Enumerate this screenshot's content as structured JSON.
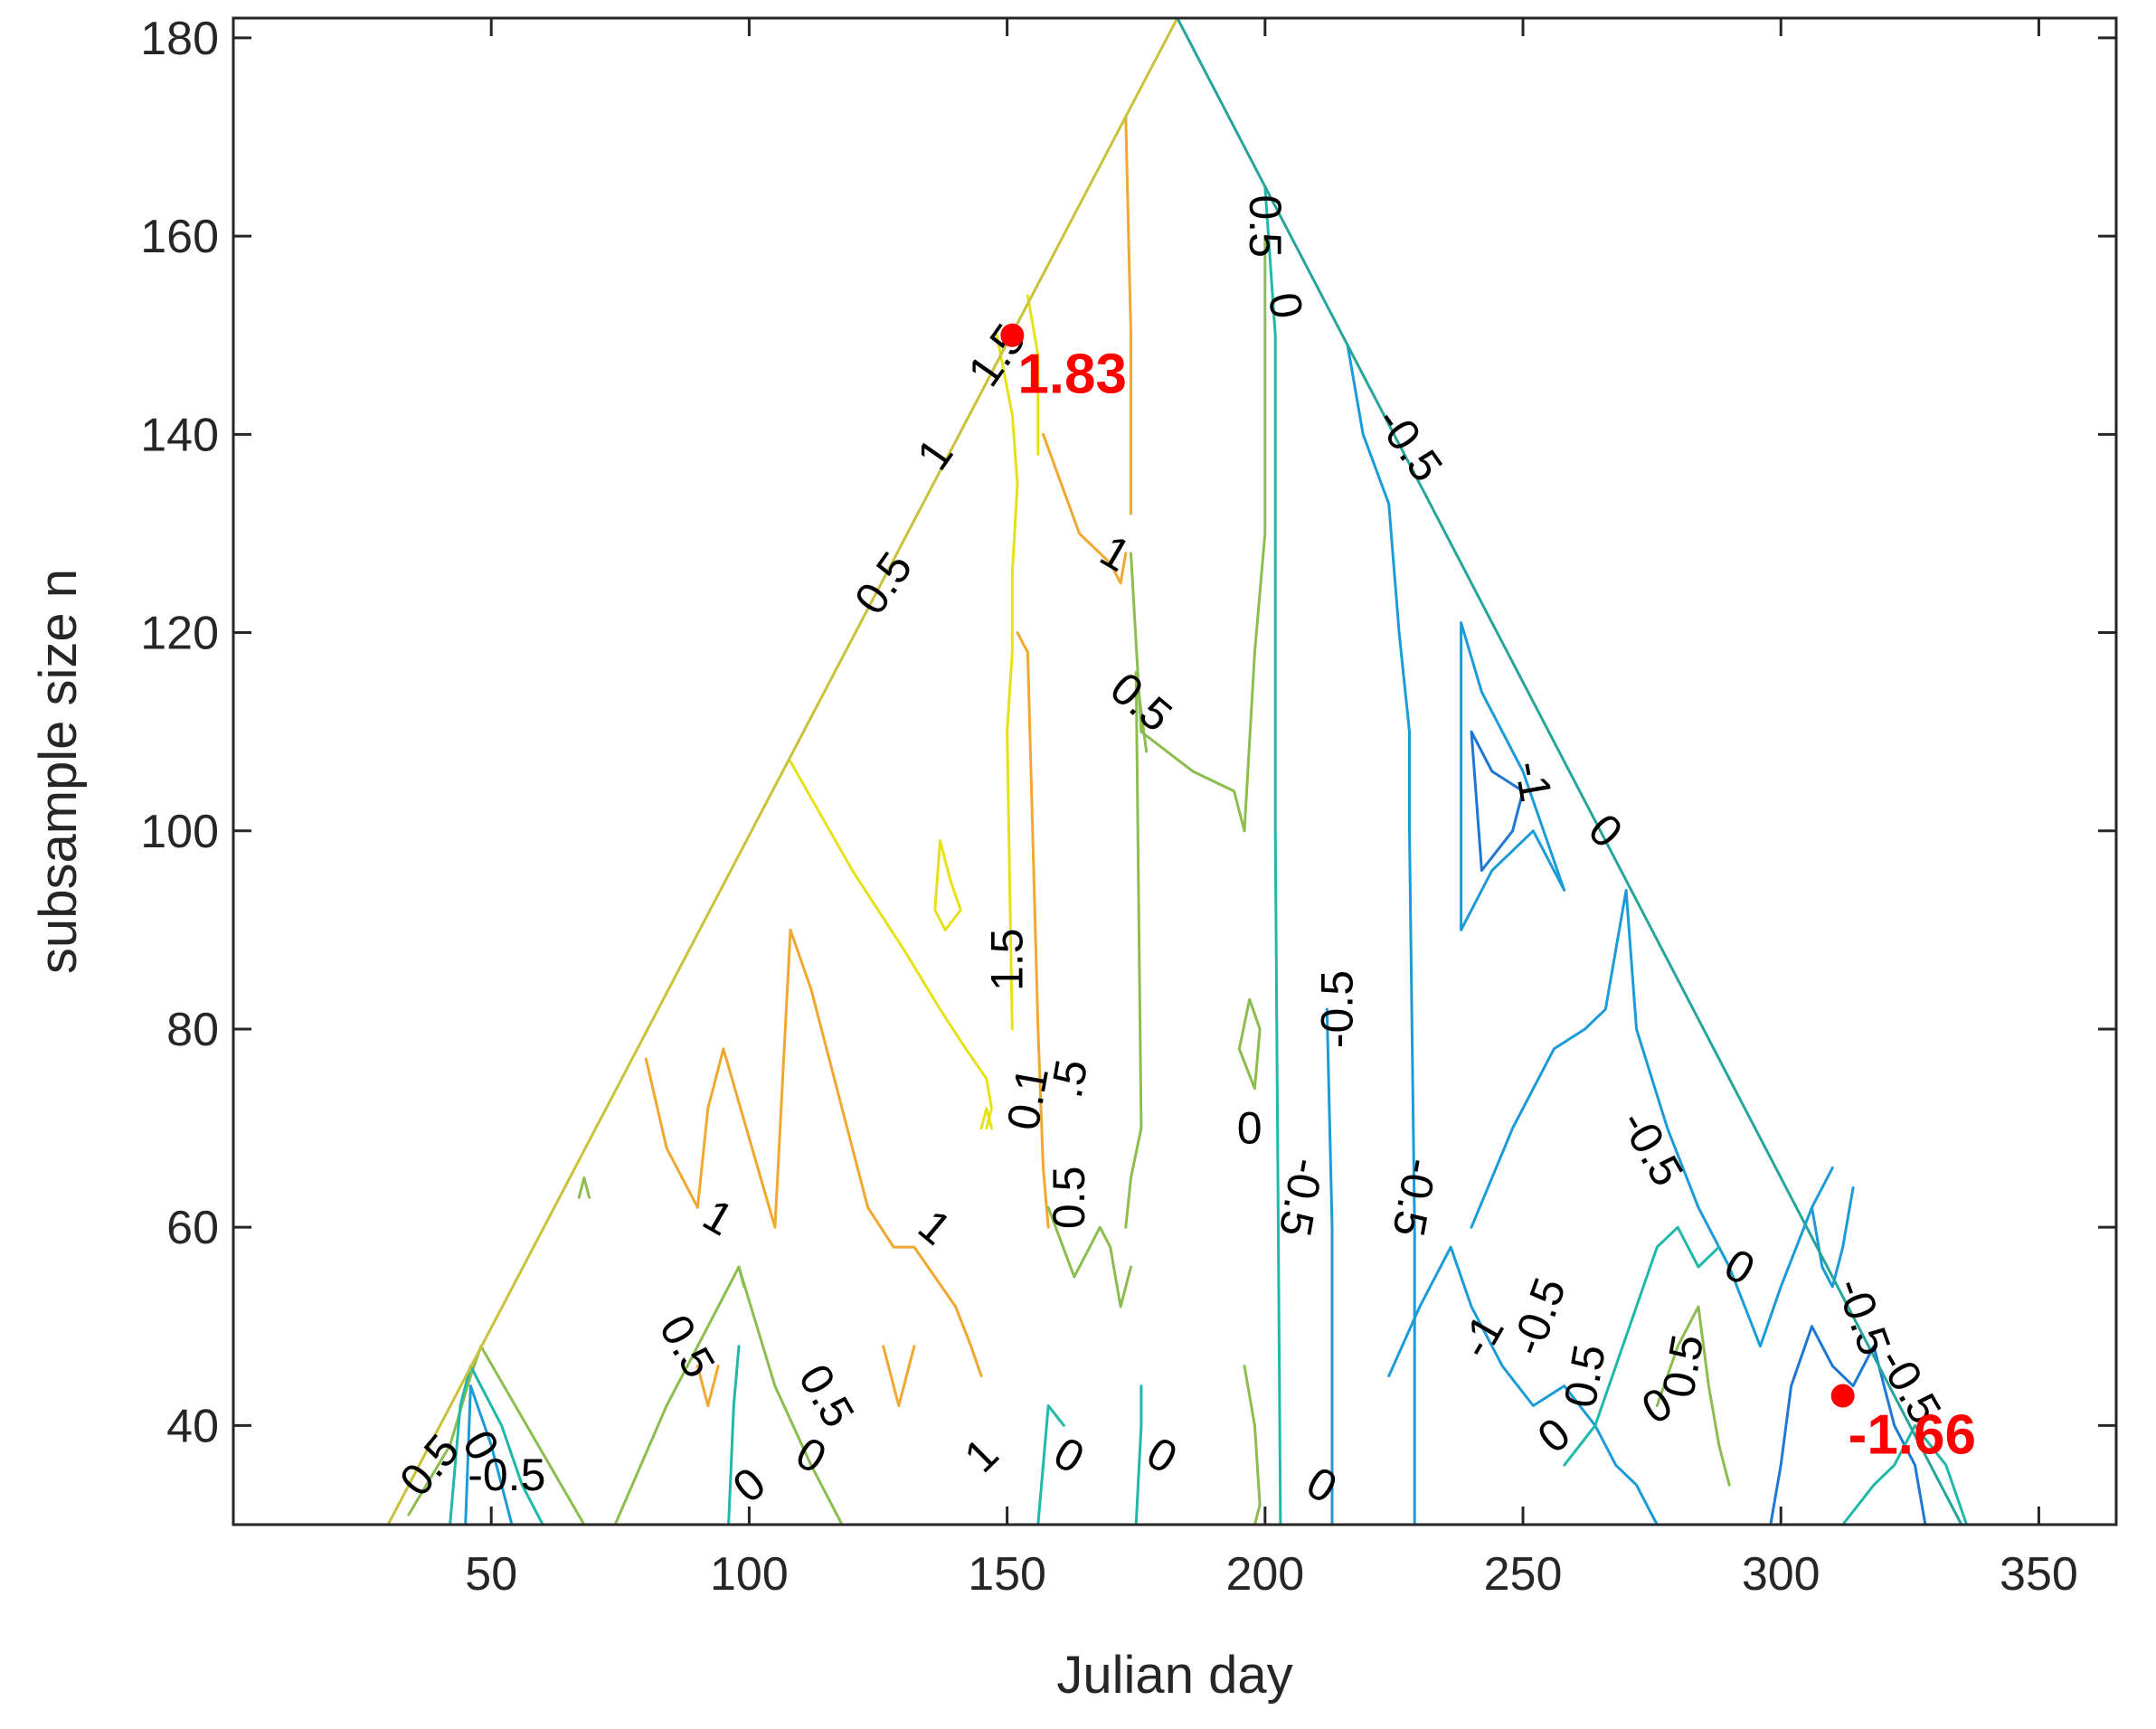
{
  "chart_data": {
    "type": "contour",
    "xlabel": "Julian day",
    "ylabel": "subsample size n",
    "xlim": [
      0,
      365
    ],
    "ylim": [
      30,
      182
    ],
    "xticks": [
      50,
      100,
      150,
      200,
      250,
      300,
      350
    ],
    "yticks": [
      40,
      60,
      80,
      100,
      120,
      140,
      160,
      180
    ],
    "grid": false,
    "domain_triangle": [
      [
        30,
        30
      ],
      [
        183,
        182
      ],
      [
        335,
        30
      ]
    ],
    "markers": [
      {
        "label": "1.83",
        "x": 151,
        "y": 150
      },
      {
        "label": "-1.66",
        "x": 312,
        "y": 43
      }
    ],
    "contour_labels": [
      {
        "text": "0.5",
        "x": 200,
        "y": 161,
        "rot": 90
      },
      {
        "text": "0",
        "x": 204,
        "y": 153,
        "rot": 80
      },
      {
        "text": "-0.5",
        "x": 228,
        "y": 139,
        "rot": 55
      },
      {
        "text": "1.5",
        "x": 148,
        "y": 148,
        "rot": -55
      },
      {
        "text": "1",
        "x": 136,
        "y": 138,
        "rot": -55
      },
      {
        "text": "0.5",
        "x": 126,
        "y": 125,
        "rot": -55
      },
      {
        "text": "1",
        "x": 171,
        "y": 128,
        "rot": 30
      },
      {
        "text": "0.5",
        "x": 176,
        "y": 113,
        "rot": 40
      },
      {
        "text": "-1",
        "x": 252,
        "y": 105,
        "rot": 80
      },
      {
        "text": "0",
        "x": 266,
        "y": 100,
        "rot": 45
      },
      {
        "text": "1.5",
        "x": 150,
        "y": 87,
        "rot": -90
      },
      {
        "text": "-0.5",
        "x": 214,
        "y": 82,
        "rot": -90
      },
      {
        "text": "0.1",
        "x": 154,
        "y": 73,
        "rot": -80
      },
      {
        "text": ".5",
        "x": 162,
        "y": 75,
        "rot": -80
      },
      {
        "text": "0.5",
        "x": 162,
        "y": 63,
        "rot": -90
      },
      {
        "text": "0",
        "x": 197,
        "y": 70,
        "rot": 0
      },
      {
        "text": "-0.5",
        "x": 207,
        "y": 63,
        "rot": 100
      },
      {
        "text": "-0.5",
        "x": 229,
        "y": 63,
        "rot": 100
      },
      {
        "text": "-0.5",
        "x": 275,
        "y": 68,
        "rot": 60
      },
      {
        "text": "1",
        "x": 94,
        "y": 61,
        "rot": 30
      },
      {
        "text": "1",
        "x": 136,
        "y": 60,
        "rot": 40
      },
      {
        "text": "0.5",
        "x": 88,
        "y": 48,
        "rot": 60
      },
      {
        "text": "0.5",
        "x": 115,
        "y": 43,
        "rot": 60
      },
      {
        "text": "-0.5",
        "x": 253,
        "y": 51,
        "rot": -70
      },
      {
        "text": "-1",
        "x": 242,
        "y": 49,
        "rot": -60
      },
      {
        "text": "0.5",
        "x": 262,
        "y": 45,
        "rot": -80
      },
      {
        "text": "0.5",
        "x": 281,
        "y": 46,
        "rot": -80
      },
      {
        "text": "0",
        "x": 276,
        "y": 42,
        "rot": -30
      },
      {
        "text": "0",
        "x": 292,
        "y": 56,
        "rot": 30
      },
      {
        "text": "-0.5",
        "x": 316,
        "y": 51,
        "rot": 70
      },
      {
        "text": "-0.5",
        "x": 325,
        "y": 44,
        "rot": 60
      },
      {
        "text": "0",
        "x": 256,
        "y": 39,
        "rot": -40
      },
      {
        "text": "0.5",
        "x": 38,
        "y": 36,
        "rot": -50
      },
      {
        "text": "0",
        "x": 48,
        "y": 38,
        "rot": 60
      },
      {
        "text": "-0.5",
        "x": 53,
        "y": 35,
        "rot": 0
      },
      {
        "text": "0",
        "x": 100,
        "y": 34,
        "rot": -40
      },
      {
        "text": "0",
        "x": 112,
        "y": 37,
        "rot": 30
      },
      {
        "text": "1",
        "x": 145,
        "y": 37,
        "rot": -45
      },
      {
        "text": "0",
        "x": 162,
        "y": 37,
        "rot": 30
      },
      {
        "text": "0",
        "x": 180,
        "y": 37,
        "rot": 30
      },
      {
        "text": "0",
        "x": 211,
        "y": 34,
        "rot": 30
      }
    ]
  }
}
